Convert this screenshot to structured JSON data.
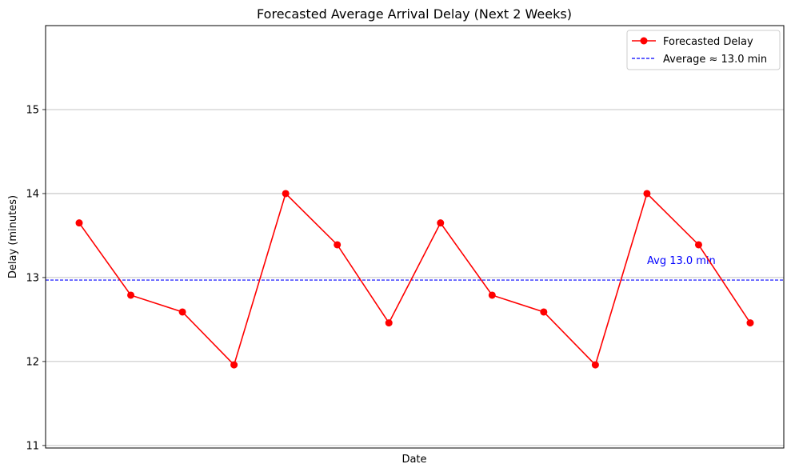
{
  "chart_data": {
    "type": "line",
    "title": "Forecasted Average Arrival Delay (Next 2 Weeks)",
    "xlabel": "Date",
    "ylabel": "Delay (minutes)",
    "ylim": [
      10.97,
      16.0
    ],
    "yticks": [
      11,
      12,
      13,
      14,
      15
    ],
    "grid": "y-axis only",
    "x": [
      1,
      2,
      3,
      4,
      5,
      6,
      7,
      8,
      9,
      10,
      11,
      12,
      13,
      14
    ],
    "series": [
      {
        "name": "Forecasted Delay",
        "color": "#ff0000",
        "marker": "circle",
        "values": [
          13.65,
          12.79,
          12.59,
          11.96,
          14.0,
          13.39,
          12.46,
          13.65,
          12.79,
          12.59,
          11.96,
          14.0,
          13.39,
          12.46
        ]
      }
    ],
    "average_line": {
      "value": 12.97,
      "color": "#0000ff",
      "style": "dashed",
      "legend_label": "Average ≈ 13.0 min",
      "annotation": "Avg 13.0 min"
    },
    "legend_position": "top-right"
  }
}
